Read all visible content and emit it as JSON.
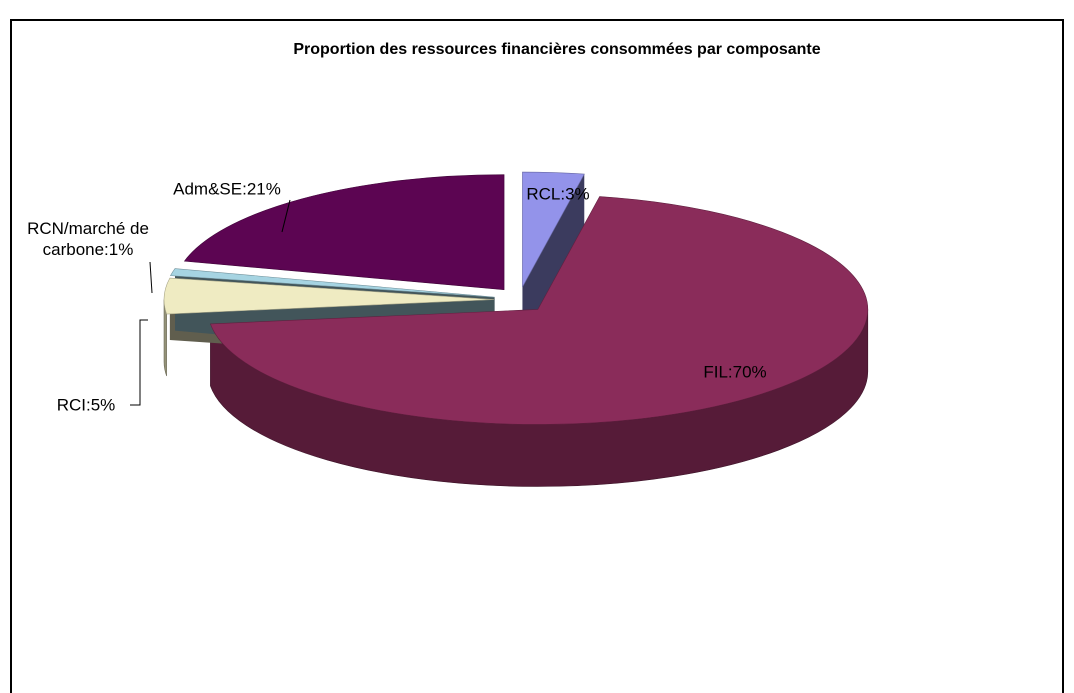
{
  "chart_data": {
    "type": "pie",
    "title": "Proportion des ressources financières consommées par composante",
    "values": [
      3,
      70,
      5,
      1,
      21
    ],
    "value_labels": [
      "RCL:3%",
      "FIL:70%",
      "RCI:5%",
      "RCN/marché de carbone:1%",
      "Adm&SE:21%"
    ],
    "colors": [
      "#9393ea",
      "#8a2c5a",
      "#efebc2",
      "#a6d4e2",
      "#5c0552"
    ]
  }
}
